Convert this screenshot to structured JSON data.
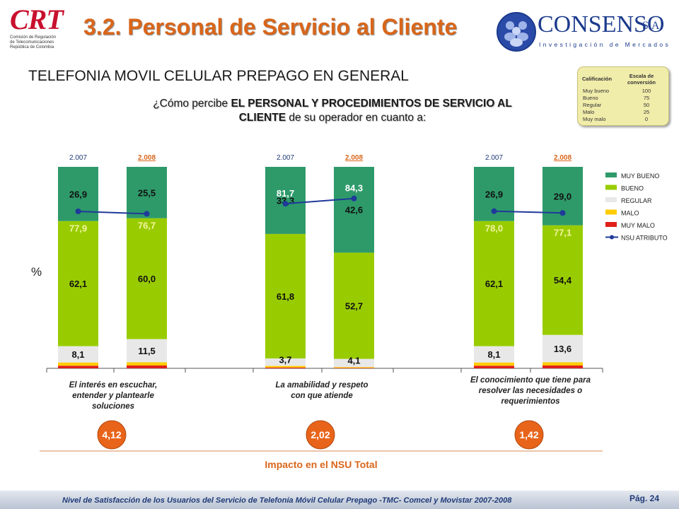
{
  "header": {
    "logo_text": "CRT",
    "logo_sub": [
      "Comisión de Regulación",
      "de Telecomunicaciones",
      "República de Colombia"
    ],
    "title": "3.2. Personal de Servicio al Cliente",
    "consenso_name": "CONSENSO",
    "consenso_sa": "S.A.",
    "consenso_sub": "Investigación de Mercados"
  },
  "subtitle": "TELEFONIA MOVIL CELULAR PREPAGO EN GENERAL",
  "question": {
    "part1": "¿Cómo percibe ",
    "bold": "EL PERSONAL Y PROCEDIMIENTOS DE SERVICIO AL CLIENTE",
    "part2": " de su operador en cuanto a:"
  },
  "scale_table": {
    "col1": "Calificación",
    "col2": "Escala de conversión",
    "rows": [
      {
        "label": "Muy bueno",
        "value": "100"
      },
      {
        "label": "Bueno",
        "value": "75"
      },
      {
        "label": "Regular",
        "value": "50"
      },
      {
        "label": "Malo",
        "value": "25"
      },
      {
        "label": "Muy malo",
        "value": "0"
      }
    ]
  },
  "colors": {
    "muy_bueno": "#2e9a6a",
    "bueno": "#99cc00",
    "regular": "#e8e8e8",
    "malo": "#ffcc00",
    "muy_malo": "#e0201a",
    "nsu": "#1f3a9a",
    "impact": "#e8641a"
  },
  "chart_data": {
    "type": "bar",
    "stacked": true,
    "ylabel": "%",
    "ylim": [
      0,
      100
    ],
    "legend_position": "right",
    "legend": [
      "MUY BUENO",
      "BUENO",
      "REGULAR",
      "MALO",
      "MUY MALO",
      "NSU ATRIBUTO"
    ],
    "groups": [
      {
        "label": "El interés en escuchar, entender y plantearle soluciones",
        "impact": "4,12",
        "bars": [
          {
            "year": "2.007",
            "muy_bueno": 26.9,
            "bueno": 62.1,
            "regular": 8.1,
            "malo": 1.6,
            "muy_malo": 1.3,
            "muy_bueno_label": "26,9",
            "bueno_label": "62,1",
            "regular_label": "8,1",
            "nsu": 77.9,
            "nsu_label": "77,9"
          },
          {
            "year": "2.008",
            "muy_bueno": 25.5,
            "bueno": 60.0,
            "regular": 11.5,
            "malo": 1.6,
            "muy_malo": 1.4,
            "muy_bueno_label": "25,5",
            "bueno_label": "60,0",
            "regular_label": "11,5",
            "nsu": 76.7,
            "nsu_label": "76,7"
          }
        ]
      },
      {
        "label": "La amabilidad y respeto con que atiende",
        "impact": "2,02",
        "bars": [
          {
            "year": "2.007",
            "muy_bueno": 33.3,
            "bueno": 61.8,
            "regular": 3.7,
            "malo": 0.8,
            "muy_malo": 0.4,
            "muy_bueno_label": "33,3",
            "bueno_label": "61,8",
            "regular_label": "3,7",
            "nsu": 81.7,
            "nsu_label": "81,7"
          },
          {
            "year": "2.008",
            "muy_bueno": 42.6,
            "bueno": 52.7,
            "regular": 4.1,
            "malo": 0.4,
            "muy_malo": 0.2,
            "muy_bueno_label": "42,6",
            "bueno_label": "52,7",
            "regular_label": "4,1",
            "nsu": 84.3,
            "nsu_label": "84,3"
          }
        ]
      },
      {
        "label": "El conocimiento que tiene para resolver las necesidades o requerimientos",
        "impact": "1,42",
        "bars": [
          {
            "year": "2.007",
            "muy_bueno": 26.9,
            "bueno": 62.1,
            "regular": 8.1,
            "malo": 1.6,
            "muy_malo": 1.3,
            "muy_bueno_label": "26,9",
            "bueno_label": "62,1",
            "regular_label": "8,1",
            "nsu": 78.0,
            "nsu_label": "78,0"
          },
          {
            "year": "2.008",
            "muy_bueno": 29.0,
            "bueno": 54.4,
            "regular": 13.6,
            "malo": 1.6,
            "muy_malo": 1.4,
            "muy_bueno_label": "29,0",
            "bueno_label": "54,4",
            "regular_label": "13,6",
            "nsu": 77.1,
            "nsu_label": "77,1"
          }
        ]
      }
    ]
  },
  "impact_caption": "Impacto en el NSU Total",
  "footer": {
    "text": "Nivel de Satisfacción de los Usuarios del Servicio de Telefonía Móvil Celular Prepago -TMC- Comcel y Movistar 2007-2008",
    "page": "Pág. 24"
  }
}
